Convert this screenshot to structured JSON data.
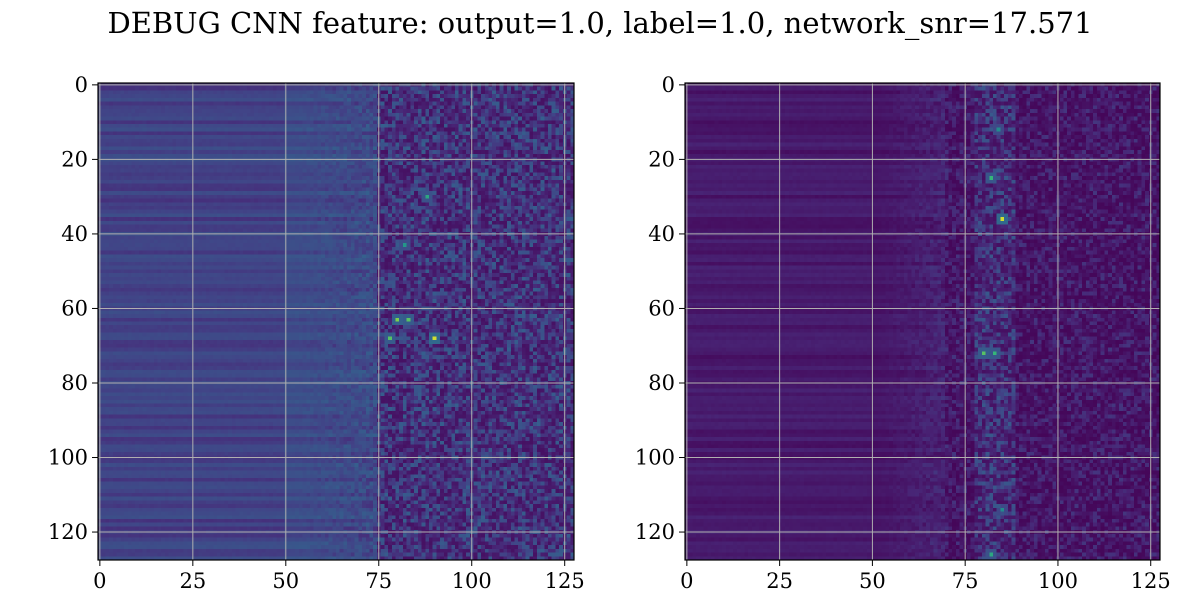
{
  "title": "DEBUG CNN feature: output=1.0, label=1.0, network_snr=17.571",
  "chart_data": [
    {
      "type": "heatmap",
      "colormap": "viridis",
      "shape": [
        128,
        128
      ],
      "x_ticks": [
        "0",
        "25",
        "50",
        "75",
        "100",
        "125"
      ],
      "y_ticks": [
        "0",
        "20",
        "40",
        "60",
        "80",
        "100",
        "120"
      ],
      "xlim": [
        0,
        127
      ],
      "ylim": [
        127,
        0
      ],
      "grid": true,
      "value_range": [
        0,
        1
      ],
      "features": {
        "uniform_region_end_col": 50,
        "ramp_end_col": 75,
        "bright_spots": [
          {
            "row": 63,
            "col": 80,
            "value": 0.85
          },
          {
            "row": 63,
            "col": 83,
            "value": 0.8
          },
          {
            "row": 68,
            "col": 90,
            "value": 0.95
          },
          {
            "row": 68,
            "col": 78,
            "value": 0.8
          },
          {
            "row": 30,
            "col": 88,
            "value": 0.7
          },
          {
            "row": 43,
            "col": 82,
            "value": 0.65
          }
        ]
      }
    },
    {
      "type": "heatmap",
      "colormap": "viridis",
      "shape": [
        128,
        128
      ],
      "x_ticks": [
        "0",
        "25",
        "50",
        "75",
        "100",
        "125"
      ],
      "y_ticks": [
        "0",
        "20",
        "40",
        "60",
        "80",
        "100",
        "120"
      ],
      "xlim": [
        0,
        127
      ],
      "ylim": [
        127,
        0
      ],
      "grid": true,
      "value_range": [
        0,
        1
      ],
      "features": {
        "signal_band_cols": [
          78,
          88
        ],
        "bright_spots": [
          {
            "row": 36,
            "col": 85,
            "value": 0.95
          },
          {
            "row": 25,
            "col": 82,
            "value": 0.75
          },
          {
            "row": 72,
            "col": 80,
            "value": 0.8
          },
          {
            "row": 72,
            "col": 83,
            "value": 0.75
          },
          {
            "row": 12,
            "col": 84,
            "value": 0.6
          },
          {
            "row": 126,
            "col": 82,
            "value": 0.7
          },
          {
            "row": 114,
            "col": 85,
            "value": 0.6
          }
        ]
      }
    }
  ]
}
